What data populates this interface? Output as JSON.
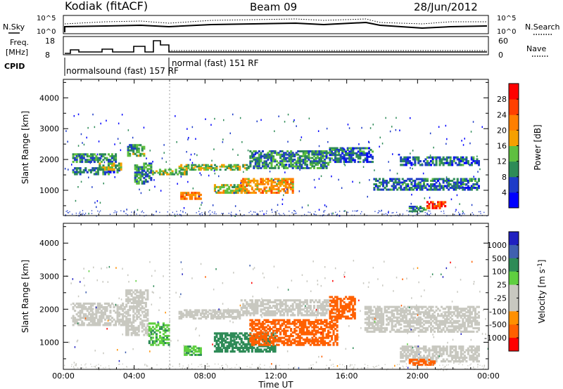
{
  "header": {
    "station": "Kodiak (fitACF)",
    "beam": "Beam 09",
    "date": "28/Jun/2012"
  },
  "params": {
    "nsky_label": "N.Sky",
    "nsearch_label": "N.Search",
    "noise_ticks": [
      "10^5",
      "10^0"
    ],
    "freq_label_1": "Freq.",
    "freq_label_2": "[MHz]",
    "freq_ticks": [
      "18",
      "8"
    ],
    "nave_label": "Nave",
    "nave_ticks": [
      "60",
      "0"
    ],
    "cpid_label": "CPID",
    "cpid_1": "normalsound (fast) 157 RF",
    "cpid_2": "normal (fast) 151 RF"
  },
  "colors": {
    "power": [
      "#0000ff",
      "#1e3cc8",
      "#2e8b57",
      "#5fbf40",
      "#f5a000",
      "#ff7f00",
      "#ff4000",
      "#ff0000"
    ],
    "velocity": [
      "#2020c0",
      "#4060b0",
      "#2e8b57",
      "#5fcf40",
      "#c8c8c0",
      "#c8c8c0",
      "#ff9000",
      "#ff6000",
      "#ff0000"
    ]
  },
  "chart_data": [
    {
      "type": "heatmap",
      "title": "Power",
      "ylabel": "Slant Range [km]",
      "xlabel": "Time UT",
      "xlim": [
        "00:00",
        "24:00"
      ],
      "ylim": [
        180,
        4600
      ],
      "x_ticks": [
        "00:00",
        "04:00",
        "08:00",
        "12:00",
        "16:00",
        "20:00",
        "00:00"
      ],
      "y_ticks": [
        1000,
        2000,
        3000,
        4000
      ],
      "colorbar": {
        "label": "Power [dB]",
        "range": [
          0,
          32
        ],
        "ticks": [
          4,
          8,
          12,
          16,
          20,
          24,
          28
        ]
      },
      "bands": [
        {
          "t0": 0.5,
          "t1": 3.0,
          "r0": 1900,
          "r1": 2200,
          "level": 10
        },
        {
          "t0": 0.5,
          "t1": 3.2,
          "r0": 1500,
          "r1": 1750,
          "level": 8
        },
        {
          "t0": 2.0,
          "t1": 3.3,
          "r0": 1650,
          "r1": 1900,
          "level": 14
        },
        {
          "t0": 3.6,
          "t1": 4.6,
          "r0": 2100,
          "r1": 2500,
          "level": 12
        },
        {
          "t0": 4.0,
          "t1": 5.0,
          "r0": 1200,
          "r1": 1900,
          "level": 10
        },
        {
          "t0": 5.0,
          "t1": 7.0,
          "r0": 1500,
          "r1": 1700,
          "level": 14
        },
        {
          "t0": 6.6,
          "t1": 7.8,
          "r0": 700,
          "r1": 950,
          "level": 22
        },
        {
          "t0": 6.5,
          "t1": 10.5,
          "r0": 1650,
          "r1": 1850,
          "level": 14
        },
        {
          "t0": 8.5,
          "t1": 10.5,
          "r0": 900,
          "r1": 1200,
          "level": 16
        },
        {
          "t0": 10.0,
          "t1": 13.0,
          "r0": 900,
          "r1": 1400,
          "level": 20
        },
        {
          "t0": 10.5,
          "t1": 15.0,
          "r0": 1700,
          "r1": 2300,
          "level": 10
        },
        {
          "t0": 15.0,
          "t1": 17.5,
          "r0": 1900,
          "r1": 2400,
          "level": 8
        },
        {
          "t0": 17.5,
          "t1": 23.5,
          "r0": 1000,
          "r1": 1400,
          "level": 8
        },
        {
          "t0": 19.0,
          "t1": 23.5,
          "r0": 1800,
          "r1": 2100,
          "level": 8
        },
        {
          "t0": 20.5,
          "t1": 21.6,
          "r0": 400,
          "r1": 650,
          "level": 26
        },
        {
          "t0": 19.5,
          "t1": 20.5,
          "r0": 300,
          "r1": 500,
          "level": 10
        }
      ]
    },
    {
      "type": "heatmap",
      "title": "Velocity",
      "ylabel": "Slant Range [km]",
      "xlabel": "Time UT",
      "xlim": [
        "00:00",
        "24:00"
      ],
      "ylim": [
        180,
        4600
      ],
      "x_ticks": [
        "00:00",
        "04:00",
        "08:00",
        "12:00",
        "16:00",
        "20:00",
        "00:00"
      ],
      "y_ticks": [
        1000,
        2000,
        3000,
        4000
      ],
      "colorbar": {
        "label": "Velocity [m s^-1]",
        "ticks": [
          1000,
          500,
          100,
          25,
          -25,
          -100,
          -500,
          -1000
        ]
      },
      "bands": [
        {
          "t0": 0.5,
          "t1": 3.5,
          "r0": 1500,
          "r1": 2200,
          "level": 0
        },
        {
          "t0": 3.5,
          "t1": 4.8,
          "r0": 1200,
          "r1": 2600,
          "level": 0
        },
        {
          "t0": 4.8,
          "t1": 6.0,
          "r0": 900,
          "r1": 1600,
          "level": 80
        },
        {
          "t0": 6.8,
          "t1": 7.8,
          "r0": 600,
          "r1": 900,
          "level": 80
        },
        {
          "t0": 6.5,
          "t1": 10.0,
          "r0": 1700,
          "r1": 2000,
          "level": 0
        },
        {
          "t0": 8.5,
          "t1": 12.0,
          "r0": 700,
          "r1": 1300,
          "level": 150
        },
        {
          "t0": 10.5,
          "t1": 15.5,
          "r0": 900,
          "r1": 1700,
          "level": -150
        },
        {
          "t0": 15.0,
          "t1": 16.5,
          "r0": 1700,
          "r1": 2400,
          "level": -150
        },
        {
          "t0": 10.0,
          "t1": 15.0,
          "r0": 1800,
          "r1": 2300,
          "level": 0
        },
        {
          "t0": 17.0,
          "t1": 23.5,
          "r0": 1300,
          "r1": 2100,
          "level": 0
        },
        {
          "t0": 19.0,
          "t1": 23.5,
          "r0": 400,
          "r1": 900,
          "level": 0
        },
        {
          "t0": 19.5,
          "t1": 21.0,
          "r0": 300,
          "r1": 500,
          "level": -150
        }
      ]
    }
  ]
}
